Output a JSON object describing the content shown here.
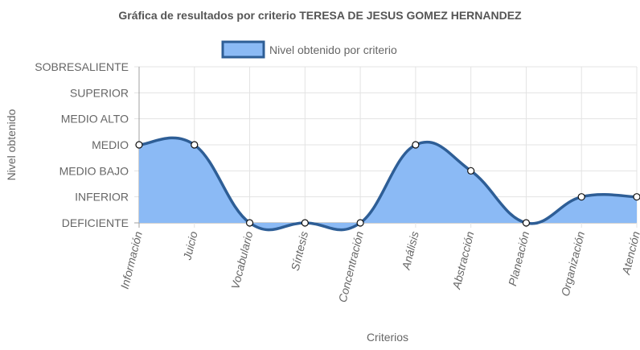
{
  "colors": {
    "fill": "#8bbaf5",
    "line": "#2e5e96",
    "grid": "#e3e3e3",
    "axis": "#a0a0a0",
    "text": "#666666",
    "title": "#555555",
    "point_fill": "#ffffff",
    "point_stroke": "#111111"
  },
  "chart_data": {
    "type": "area",
    "title": "Gráfica de resultados por criterio TERESA DE JESUS GOMEZ HERNANDEZ",
    "xlabel": "Criterios",
    "ylabel": "Nivel obtenido",
    "levels": [
      "DEFICIENTE",
      "INFERIOR",
      "MEDIO BAJO",
      "MEDIO",
      "MEDIO ALTO",
      "SUPERIOR",
      "SOBRESALIENTE"
    ],
    "ylim": [
      0,
      6
    ],
    "categories": [
      "Información",
      "Juicio",
      "Vocabulario",
      "Síntesis",
      "Concentración",
      "Análisis",
      "Abstracción",
      "Planeación",
      "Organización",
      "Atención"
    ],
    "series": [
      {
        "name": "Nivel obtenido por criterio",
        "values": [
          3,
          3,
          0,
          0,
          0,
          3,
          2,
          0,
          1,
          1
        ]
      }
    ],
    "legend": "top-center",
    "grid": true,
    "smooth": true
  }
}
